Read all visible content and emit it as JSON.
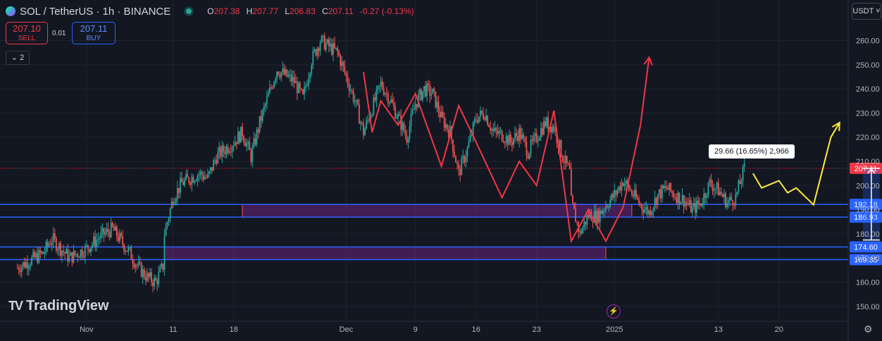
{
  "header": {
    "title": "SOL / TetherUS · 1h · BINANCE",
    "open_label": "O",
    "open": "207.38",
    "high_label": "H",
    "high": "207.77",
    "low_label": "L",
    "low": "206.83",
    "close_label": "C",
    "close": "207.11",
    "change": "-0.27 (-0.13%)"
  },
  "trade": {
    "sell_price": "207.10",
    "sell_label": "SELL",
    "spread": "0.01",
    "buy_price": "207.11",
    "buy_label": "BUY"
  },
  "indicators_toggle": "2",
  "currency": "USDT",
  "brand": "TradingView",
  "measure_label": "29.66 (16.65%) 2,966",
  "colors": {
    "background": "#131722",
    "up": "#26a69a",
    "down": "#ef5350",
    "level_line": "#2962ff",
    "zone_fill": "#9c27b0",
    "red_path": "#f23645",
    "yellow_path": "#ffeb3b",
    "last_price": "#f23645"
  },
  "chart_data": {
    "type": "candlestick",
    "symbol": "SOL / TetherUS",
    "interval": "1h",
    "exchange": "BINANCE",
    "ylim": [
      145,
      268
    ],
    "y_ticks": [
      "260.00",
      "250.00",
      "240.00",
      "230.00",
      "220.00",
      "210.00",
      "200.00",
      "190.00",
      "180.00",
      "170.00",
      "160.00",
      "150.00"
    ],
    "y_tick_values": [
      260,
      250,
      240,
      230,
      220,
      210,
      200,
      190,
      180,
      170,
      160,
      150
    ],
    "x_ticks": [
      "Nov",
      "11",
      "18",
      "Dec",
      "9",
      "16",
      "23",
      "2025",
      "13",
      "20"
    ],
    "x_tick_dates": [
      "2024-11-01",
      "2024-11-11",
      "2024-11-18",
      "2024-12-01",
      "2024-12-09",
      "2024-12-16",
      "2024-12-23",
      "2025-01-01",
      "2025-01-13",
      "2025-01-20"
    ],
    "last_price": 207.11,
    "last_price_label": "207.11",
    "price_path": [
      [
        "2024-10-24",
        166
      ],
      [
        "2024-10-27",
        172
      ],
      [
        "2024-10-28",
        178
      ],
      [
        "2024-10-30",
        170
      ],
      [
        "2024-11-01",
        174
      ],
      [
        "2024-11-03",
        180
      ],
      [
        "2024-11-04",
        182
      ],
      [
        "2024-11-06",
        172
      ],
      [
        "2024-11-07",
        166
      ],
      [
        "2024-11-08",
        162
      ],
      [
        "2024-11-09",
        160
      ],
      [
        "2024-11-10",
        168
      ],
      [
        "2024-11-10",
        180
      ],
      [
        "2024-11-11",
        195
      ],
      [
        "2024-11-12",
        201
      ],
      [
        "2024-11-14",
        205
      ],
      [
        "2024-11-15",
        203
      ],
      [
        "2024-11-16",
        212
      ],
      [
        "2024-11-18",
        218
      ],
      [
        "2024-11-19",
        222
      ],
      [
        "2024-11-20",
        212
      ],
      [
        "2024-11-21",
        226
      ],
      [
        "2024-11-22",
        237
      ],
      [
        "2024-11-23",
        248
      ],
      [
        "2024-11-25",
        243
      ],
      [
        "2024-11-26",
        236
      ],
      [
        "2024-11-27",
        252
      ],
      [
        "2024-11-28",
        260
      ],
      [
        "2024-11-30",
        255
      ],
      [
        "2024-12-01",
        245
      ],
      [
        "2024-12-02",
        235
      ],
      [
        "2024-12-03",
        222
      ],
      [
        "2024-12-04",
        232
      ],
      [
        "2024-12-05",
        242
      ],
      [
        "2024-12-06",
        236
      ],
      [
        "2024-12-07",
        228
      ],
      [
        "2024-12-08",
        220
      ],
      [
        "2024-12-09",
        234
      ],
      [
        "2024-12-10",
        240
      ],
      [
        "2024-12-11",
        238
      ],
      [
        "2024-12-12",
        228
      ],
      [
        "2024-12-13",
        222
      ],
      [
        "2024-12-14",
        205
      ],
      [
        "2024-12-15",
        215
      ],
      [
        "2024-12-16",
        228
      ],
      [
        "2024-12-17",
        230
      ],
      [
        "2024-12-18",
        222
      ],
      [
        "2024-12-19",
        221
      ],
      [
        "2024-12-20",
        218
      ],
      [
        "2024-12-21",
        222
      ],
      [
        "2024-12-22",
        214
      ],
      [
        "2024-12-23",
        220
      ],
      [
        "2024-12-24",
        226
      ],
      [
        "2024-12-25",
        224
      ],
      [
        "2024-12-26",
        212
      ],
      [
        "2024-12-27",
        204
      ],
      [
        "2024-12-27",
        193
      ],
      [
        "2024-12-28",
        180
      ],
      [
        "2024-12-29",
        188
      ],
      [
        "2024-12-30",
        187
      ],
      [
        "2024-12-31",
        192
      ],
      [
        "2025-01-01",
        196
      ],
      [
        "2025-01-02",
        202
      ],
      [
        "2025-01-03",
        197
      ],
      [
        "2025-01-04",
        192
      ],
      [
        "2025-01-05",
        189
      ],
      [
        "2025-01-06",
        196
      ],
      [
        "2025-01-07",
        199
      ],
      [
        "2025-01-08",
        196
      ],
      [
        "2025-01-09",
        194
      ],
      [
        "2025-01-10",
        190
      ],
      [
        "2025-01-11",
        193
      ],
      [
        "2025-01-12",
        201
      ],
      [
        "2025-01-13",
        198
      ],
      [
        "2025-01-14",
        193
      ],
      [
        "2025-01-15",
        195
      ],
      [
        "2025-01-16",
        207.11
      ]
    ],
    "horizontal_levels": [
      {
        "value": 192.18,
        "label": "192.18"
      },
      {
        "value": 186.93,
        "label": "186.93"
      },
      {
        "value": 174.6,
        "label": "174.60"
      },
      {
        "value": 169.35,
        "label": "169.35"
      }
    ],
    "zones": [
      {
        "x_start": "2024-11-19",
        "x_end": "2025-01-03",
        "y_low": 186.93,
        "y_high": 192.18
      },
      {
        "x_start": "2024-11-10",
        "x_end": "2024-12-31",
        "y_low": 169.35,
        "y_high": 174.6
      }
    ],
    "annotations": [
      {
        "type": "path",
        "color": "red",
        "points": [
          [
            "2024-12-03",
            247
          ],
          [
            "2024-12-04",
            222
          ],
          [
            "2024-12-05",
            235
          ],
          [
            "2024-12-07",
            225
          ],
          [
            "2024-12-09",
            238
          ],
          [
            "2024-12-12",
            208
          ],
          [
            "2024-12-14",
            233
          ],
          [
            "2024-12-16",
            218
          ],
          [
            "2024-12-19",
            195
          ],
          [
            "2024-12-21",
            210
          ],
          [
            "2024-12-23",
            200
          ],
          [
            "2024-12-25",
            231
          ],
          [
            "2024-12-27",
            177
          ],
          [
            "2024-12-29",
            190
          ],
          [
            "2024-12-31",
            177
          ],
          [
            "2025-01-02",
            191
          ],
          [
            "2025-01-04",
            225
          ],
          [
            "2025-01-05",
            253
          ]
        ]
      },
      {
        "type": "path",
        "color": "yellow",
        "points": [
          [
            "2025-01-17",
            205
          ],
          [
            "2025-01-18",
            199
          ],
          [
            "2025-01-20",
            202
          ],
          [
            "2025-01-21",
            197
          ],
          [
            "2025-01-22",
            199
          ],
          [
            "2025-01-24",
            192
          ],
          [
            "2025-01-26",
            220
          ],
          [
            "2025-01-27",
            226
          ]
        ]
      },
      {
        "type": "measure",
        "from": 177.45,
        "to": 207.11,
        "text": "29.66 (16.65%) 2,966"
      }
    ]
  }
}
